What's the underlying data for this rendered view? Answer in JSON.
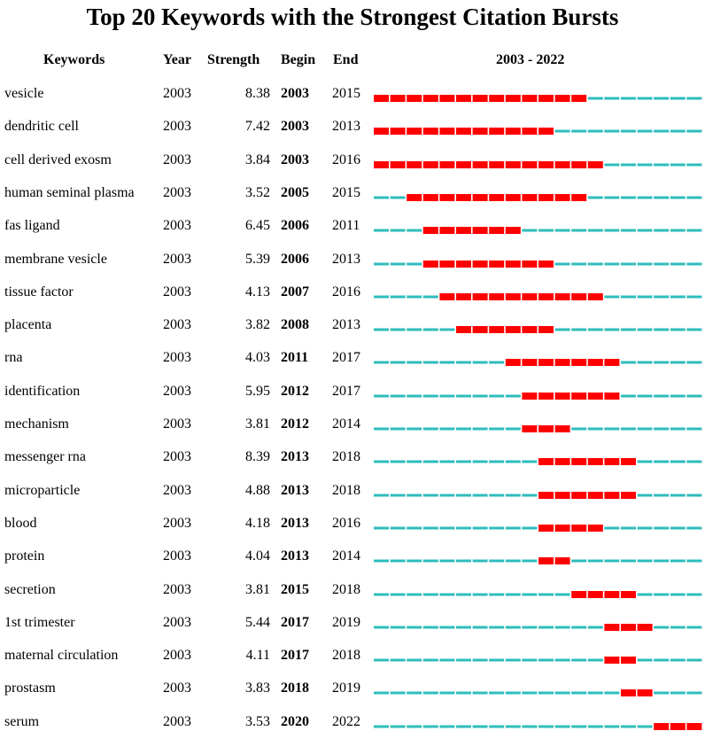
{
  "title": "Top 20 Keywords with the Strongest Citation Bursts",
  "headers": {
    "keywords": "Keywords",
    "year": "Year",
    "strength": "Strength",
    "begin": "Begin",
    "end": "End",
    "range": "2003 - 2022"
  },
  "colors": {
    "burst": "#ff0000",
    "baseline": "#2fbcbc"
  },
  "chart_data": {
    "type": "table",
    "year_range": [
      2003,
      2022
    ],
    "rows": [
      {
        "keyword": "vesicle",
        "year": "2003",
        "strength": "8.38",
        "begin": "2003",
        "end": "2015"
      },
      {
        "keyword": "dendritic cell",
        "year": "2003",
        "strength": "7.42",
        "begin": "2003",
        "end": "2013"
      },
      {
        "keyword": "cell derived exosm",
        "year": "2003",
        "strength": "3.84",
        "begin": "2003",
        "end": "2016"
      },
      {
        "keyword": "human seminal plasma",
        "year": "2003",
        "strength": "3.52",
        "begin": "2005",
        "end": "2015"
      },
      {
        "keyword": "fas ligand",
        "year": "2003",
        "strength": "6.45",
        "begin": "2006",
        "end": "2011"
      },
      {
        "keyword": "membrane vesicle",
        "year": "2003",
        "strength": "5.39",
        "begin": "2006",
        "end": "2013"
      },
      {
        "keyword": "tissue factor",
        "year": "2003",
        "strength": "4.13",
        "begin": "2007",
        "end": "2016"
      },
      {
        "keyword": "placenta",
        "year": "2003",
        "strength": "3.82",
        "begin": "2008",
        "end": "2013"
      },
      {
        "keyword": "rna",
        "year": "2003",
        "strength": "4.03",
        "begin": "2011",
        "end": "2017"
      },
      {
        "keyword": "identification",
        "year": "2003",
        "strength": "5.95",
        "begin": "2012",
        "end": "2017"
      },
      {
        "keyword": "mechanism",
        "year": "2003",
        "strength": "3.81",
        "begin": "2012",
        "end": "2014"
      },
      {
        "keyword": "messenger rna",
        "year": "2003",
        "strength": "8.39",
        "begin": "2013",
        "end": "2018"
      },
      {
        "keyword": "microparticle",
        "year": "2003",
        "strength": "4.88",
        "begin": "2013",
        "end": "2018"
      },
      {
        "keyword": "blood",
        "year": "2003",
        "strength": "4.18",
        "begin": "2013",
        "end": "2016"
      },
      {
        "keyword": "protein",
        "year": "2003",
        "strength": "4.04",
        "begin": "2013",
        "end": "2014"
      },
      {
        "keyword": "secretion",
        "year": "2003",
        "strength": "3.81",
        "begin": "2015",
        "end": "2018"
      },
      {
        "keyword": "1st trimester",
        "year": "2003",
        "strength": "5.44",
        "begin": "2017",
        "end": "2019"
      },
      {
        "keyword": "maternal circulation",
        "year": "2003",
        "strength": "4.11",
        "begin": "2017",
        "end": "2018"
      },
      {
        "keyword": "prostasm",
        "year": "2003",
        "strength": "3.83",
        "begin": "2018",
        "end": "2019"
      },
      {
        "keyword": "serum",
        "year": "2003",
        "strength": "3.53",
        "begin": "2020",
        "end": "2022"
      }
    ]
  }
}
